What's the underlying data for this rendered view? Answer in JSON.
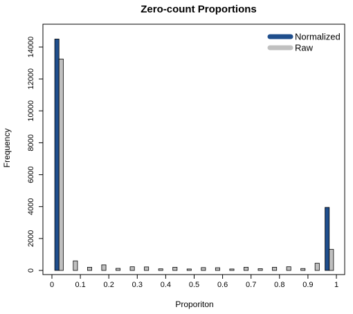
{
  "chart_data": {
    "type": "bar",
    "title": "Zero-count Proportions",
    "xlabel": "Proporiton",
    "ylabel": "Frequency",
    "xlim": [
      0,
      1
    ],
    "ylim": [
      0,
      14000
    ],
    "x_ticks": [
      0,
      0.1,
      0.2,
      0.3,
      0.4,
      0.5,
      0.6,
      0.7,
      0.8,
      0.9,
      1
    ],
    "x_tick_labels": [
      "0",
      "0.1",
      "0.2",
      "0.3",
      "0.4",
      "0.5",
      "0.6",
      "0.7",
      "0.8",
      "0.9",
      "1"
    ],
    "y_ticks": [
      0,
      2000,
      4000,
      6000,
      8000,
      10000,
      12000,
      14000
    ],
    "y_tick_labels": [
      "0",
      "2000",
      "4000",
      "6000",
      "8000",
      "10000",
      "12000",
      "14000"
    ],
    "bin_width": 0.05,
    "bin_starts": [
      0,
      0.05,
      0.1,
      0.15,
      0.2,
      0.25,
      0.3,
      0.35,
      0.4,
      0.45,
      0.5,
      0.55,
      0.6,
      0.65,
      0.7,
      0.75,
      0.8,
      0.85,
      0.9,
      0.95
    ],
    "series": [
      {
        "name": "Normalized",
        "color": "#1f4e8c",
        "values": [
          14500,
          0,
          0,
          0,
          0,
          0,
          0,
          0,
          0,
          0,
          0,
          0,
          0,
          0,
          0,
          0,
          0,
          0,
          0,
          3950
        ]
      },
      {
        "name": "Raw",
        "color": "#c0c0c0",
        "values": [
          13250,
          600,
          200,
          350,
          130,
          230,
          220,
          100,
          200,
          90,
          180,
          170,
          90,
          200,
          110,
          200,
          230,
          120,
          450,
          1320
        ]
      }
    ],
    "legend_position": "top-right",
    "grid": false
  }
}
